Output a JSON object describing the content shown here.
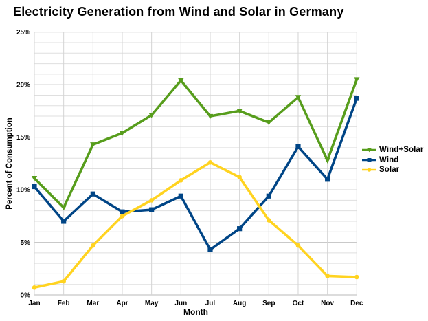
{
  "title": "Electricity Generation from Wind and Solar in Germany",
  "chart_data": {
    "type": "line",
    "title": "Electricity Generation from Wind and Solar in Germany",
    "xlabel": "Month",
    "ylabel": "Percent of Consumption",
    "categories": [
      "Jan",
      "Feb",
      "Mar",
      "Apr",
      "May",
      "Jun",
      "Jul",
      "Aug",
      "Sep",
      "Oct",
      "Nov",
      "Dec"
    ],
    "series": [
      {
        "name": "Wind+Solar",
        "color": "#579D1C",
        "marker": "triangle-down",
        "values": [
          11.1,
          8.3,
          14.3,
          15.4,
          17.1,
          20.4,
          17.0,
          17.5,
          16.4,
          18.8,
          12.8,
          20.5
        ]
      },
      {
        "name": "Wind",
        "color": "#004586",
        "marker": "square",
        "values": [
          10.3,
          7.0,
          9.6,
          7.9,
          8.1,
          9.4,
          4.3,
          6.3,
          9.4,
          14.1,
          11.0,
          18.7
        ]
      },
      {
        "name": "Solar",
        "color": "#FFD320",
        "marker": "circle",
        "values": [
          0.7,
          1.3,
          4.7,
          7.5,
          9.0,
          10.9,
          12.6,
          11.2,
          7.1,
          4.7,
          1.8,
          1.7
        ]
      }
    ],
    "ylim": [
      0,
      25
    ],
    "y_major_step": 5,
    "y_minor_step": 1,
    "y_tick_labels": [
      "0%",
      "5%",
      "10%",
      "15%",
      "20%",
      "25%"
    ],
    "grid": true,
    "legend_position": "right",
    "grid_minor_color": "#dfdfdf",
    "grid_major_color": "#c9c9c9",
    "grid_vertical_color": "#d4d4d4",
    "axis_line_color": "#b9b9b9"
  }
}
